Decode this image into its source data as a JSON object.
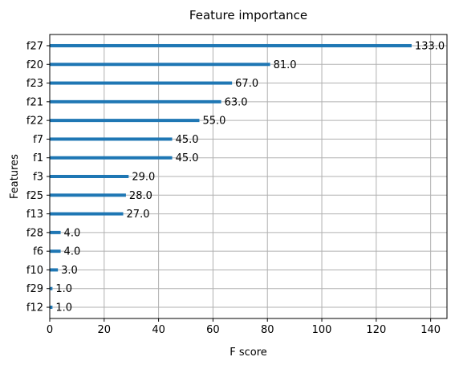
{
  "chart_data": {
    "type": "bar",
    "orientation": "horizontal",
    "title": "Feature importance",
    "xlabel": "F score",
    "ylabel": "Features",
    "xlim": [
      0,
      146
    ],
    "xticks": [
      0,
      20,
      40,
      60,
      80,
      100,
      120,
      140
    ],
    "grid": true,
    "categories": [
      "f12",
      "f29",
      "f10",
      "f6",
      "f28",
      "f13",
      "f25",
      "f3",
      "f1",
      "f7",
      "f22",
      "f21",
      "f23",
      "f20",
      "f27"
    ],
    "values": [
      1.0,
      1.0,
      3.0,
      4.0,
      4.0,
      27.0,
      28.0,
      29.0,
      45.0,
      45.0,
      55.0,
      63.0,
      67.0,
      81.0,
      133.0
    ],
    "value_labels": [
      "1.0",
      "1.0",
      "3.0",
      "4.0",
      "4.0",
      "27.0",
      "28.0",
      "29.0",
      "45.0",
      "45.0",
      "55.0",
      "63.0",
      "67.0",
      "81.0",
      "133.0"
    ],
    "bar_color": "#1f77b4",
    "grid_color": "#b0b0b0"
  }
}
